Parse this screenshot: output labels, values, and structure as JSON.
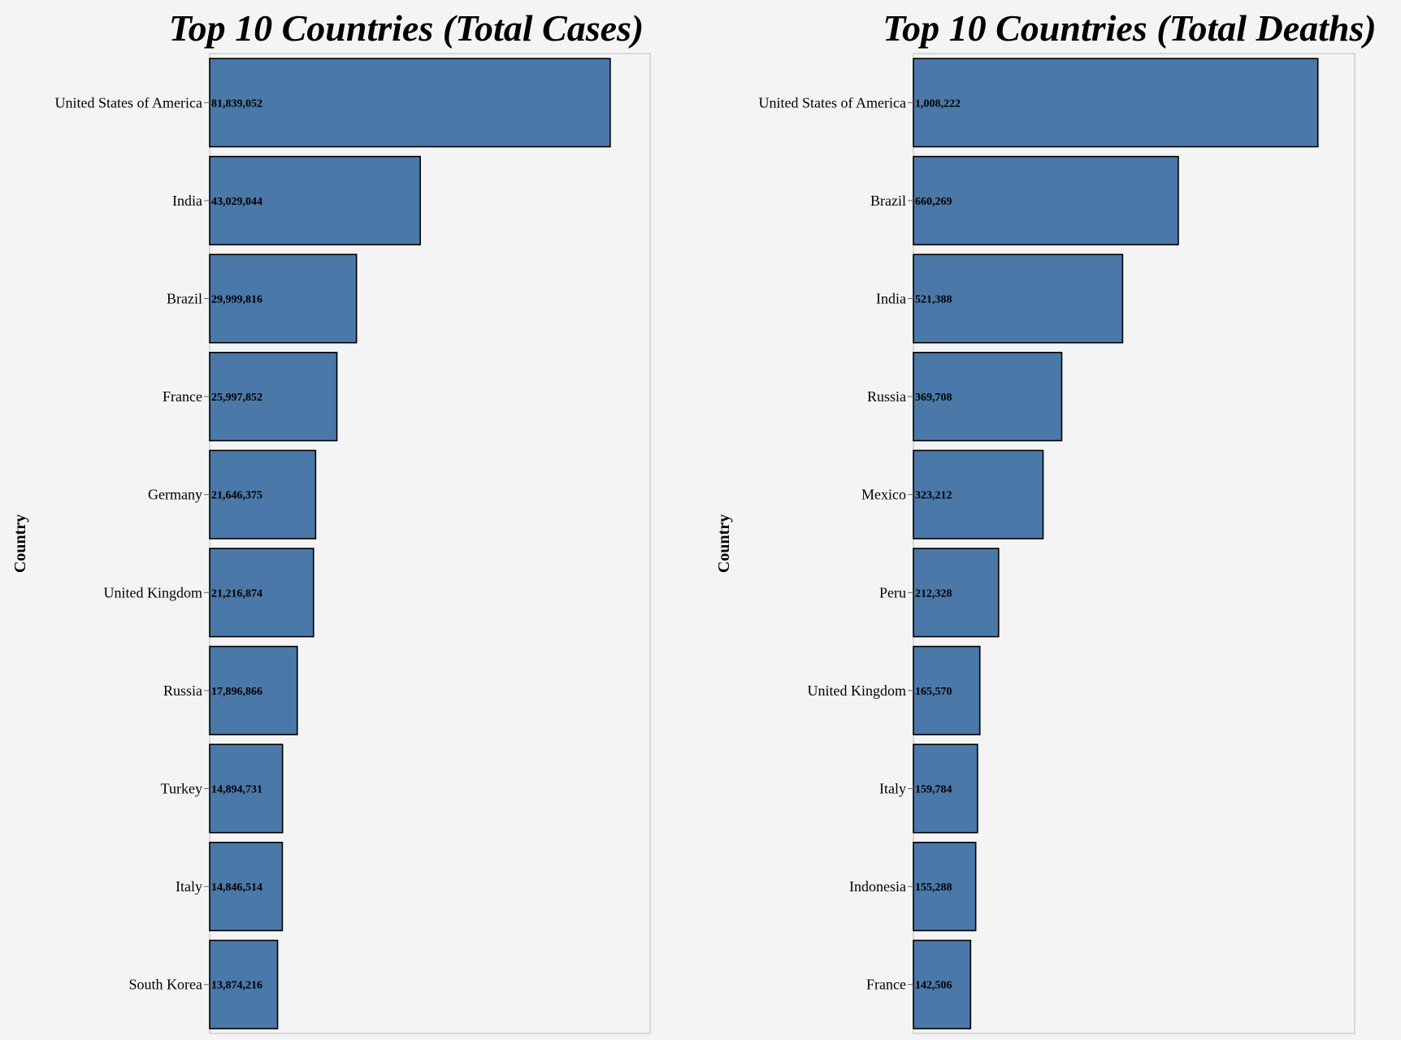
{
  "chart_data": [
    {
      "type": "bar",
      "orientation": "horizontal",
      "title": "Top 10 Countries (Total Cases)",
      "ylabel": "Country",
      "xlabel": "",
      "xlim": [
        0,
        90000000
      ],
      "grid": false,
      "bar_color": "#4a78a8",
      "categories": [
        "United States of America",
        "India",
        "Brazil",
        "France",
        "Germany",
        "United Kingdom",
        "Russia",
        "Turkey",
        "Italy",
        "South Korea"
      ],
      "values": [
        81839052,
        43029044,
        29999816,
        25997852,
        21646375,
        21216874,
        17896866,
        14894731,
        14846514,
        13874216
      ],
      "data_labels": [
        "81,839,052",
        "43,029,044",
        "29,999,816",
        "25,997,852",
        "21,646,375",
        "21,216,874",
        "17,896,866",
        "14,894,731",
        "14,846,514",
        "13,874,216"
      ]
    },
    {
      "type": "bar",
      "orientation": "horizontal",
      "title": "Top 10 Countries (Total Deaths)",
      "ylabel": "Country",
      "xlabel": "",
      "xlim": [
        0,
        1100000
      ],
      "grid": false,
      "bar_color": "#4a78a8",
      "categories": [
        "United States of America",
        "Brazil",
        "India",
        "Russia",
        "Mexico",
        "Peru",
        "United Kingdom",
        "Italy",
        "Indonesia",
        "France"
      ],
      "values": [
        1008222,
        660269,
        521388,
        369708,
        323212,
        212328,
        165570,
        159784,
        155288,
        142506
      ],
      "data_labels": [
        "1,008,222",
        "660,269",
        "521,388",
        "369,708",
        "323,212",
        "212,328",
        "165,570",
        "159,784",
        "155,288",
        "142,506"
      ]
    }
  ]
}
